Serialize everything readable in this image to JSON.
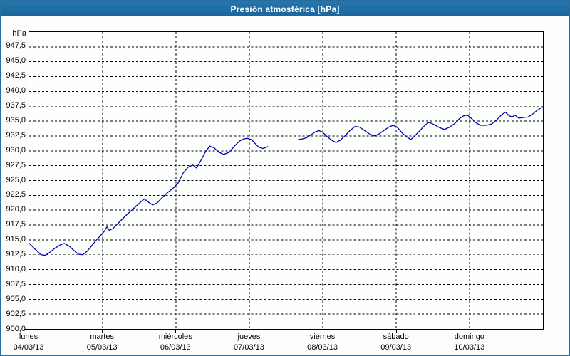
{
  "window": {
    "title": "Presión atmosférica [hPa]",
    "title_bar_color": "#2070a6",
    "border_color": "#2d6d9e"
  },
  "chart_data": {
    "type": "line",
    "title": "Presión atmosférica [hPa]",
    "ylabel": "hPa",
    "grid": "dashed",
    "legend": "none",
    "y_axis": {
      "min": 900,
      "max": 950,
      "tick_step": 2.5,
      "ticks": [
        {
          "label": "947,5",
          "value": 947.5
        },
        {
          "label": "945,0",
          "value": 945.0
        },
        {
          "label": "942,5",
          "value": 942.5
        },
        {
          "label": "940,0",
          "value": 940.0
        },
        {
          "label": "937,5",
          "value": 937.5
        },
        {
          "label": "935,0",
          "value": 935.0
        },
        {
          "label": "932,5",
          "value": 932.5
        },
        {
          "label": "930,0",
          "value": 930.0
        },
        {
          "label": "927,5",
          "value": 927.5
        },
        {
          "label": "925,0",
          "value": 925.0
        },
        {
          "label": "922,5",
          "value": 922.5
        },
        {
          "label": "920,0",
          "value": 920.0
        },
        {
          "label": "917,5",
          "value": 917.5
        },
        {
          "label": "915,0",
          "value": 915.0
        },
        {
          "label": "912,5",
          "value": 912.5
        },
        {
          "label": "910,0",
          "value": 910.0
        },
        {
          "label": "907,5",
          "value": 907.5
        },
        {
          "label": "905,0",
          "value": 905.0
        },
        {
          "label": "902,5",
          "value": 902.5
        },
        {
          "label": "900,0",
          "value": 900.0
        }
      ]
    },
    "x_axis": {
      "span_days": 7,
      "days": [
        {
          "name": "lunes",
          "date": "04/03/13"
        },
        {
          "name": "martes",
          "date": "05/03/13"
        },
        {
          "name": "miércoles",
          "date": "06/03/13"
        },
        {
          "name": "jueves",
          "date": "07/03/13"
        },
        {
          "name": "viernes",
          "date": "08/03/13"
        },
        {
          "name": "sábado",
          "date": "09/03/13"
        },
        {
          "name": "domingo",
          "date": "10/03/13"
        }
      ]
    },
    "series": [
      {
        "name": "Presión atmosférica",
        "color": "#0000a8",
        "unit": "hPa",
        "x_unit": "day_offset",
        "segments": [
          [
            [
              0.0,
              914.4
            ],
            [
              0.05,
              913.8
            ],
            [
              0.1,
              913.2
            ],
            [
              0.16,
              912.5
            ],
            [
              0.22,
              912.4
            ],
            [
              0.28,
              912.9
            ],
            [
              0.35,
              913.6
            ],
            [
              0.43,
              914.2
            ],
            [
              0.48,
              914.4
            ],
            [
              0.55,
              913.9
            ],
            [
              0.61,
              913.2
            ],
            [
              0.67,
              912.6
            ],
            [
              0.73,
              912.5
            ],
            [
              0.79,
              913.1
            ],
            [
              0.85,
              914.0
            ],
            [
              0.91,
              914.9
            ],
            [
              0.97,
              915.7
            ],
            [
              1.02,
              916.4
            ],
            [
              1.06,
              917.2
            ],
            [
              1.09,
              916.6
            ],
            [
              1.14,
              916.9
            ],
            [
              1.22,
              917.9
            ],
            [
              1.3,
              918.9
            ],
            [
              1.38,
              919.8
            ],
            [
              1.45,
              920.6
            ],
            [
              1.52,
              921.4
            ],
            [
              1.57,
              921.9
            ],
            [
              1.63,
              921.3
            ],
            [
              1.68,
              920.9
            ],
            [
              1.74,
              921.2
            ],
            [
              1.81,
              922.1
            ],
            [
              1.89,
              923.0
            ],
            [
              1.96,
              923.7
            ],
            [
              2.03,
              924.6
            ],
            [
              2.1,
              926.3
            ],
            [
              2.17,
              927.3
            ],
            [
              2.23,
              927.6
            ],
            [
              2.28,
              927.1
            ],
            [
              2.34,
              928.4
            ],
            [
              2.4,
              929.8
            ],
            [
              2.46,
              930.8
            ],
            [
              2.52,
              930.5
            ],
            [
              2.58,
              929.8
            ],
            [
              2.65,
              929.4
            ],
            [
              2.72,
              929.7
            ],
            [
              2.79,
              930.7
            ],
            [
              2.86,
              931.6
            ],
            [
              2.92,
              932.0
            ],
            [
              2.97,
              932.1
            ],
            [
              3.03,
              931.9
            ],
            [
              3.08,
              931.2
            ],
            [
              3.13,
              930.6
            ],
            [
              3.19,
              930.4
            ],
            [
              3.25,
              930.7
            ]
          ],
          [
            [
              3.67,
              931.9
            ],
            [
              3.72,
              932.0
            ],
            [
              3.78,
              932.2
            ],
            [
              3.84,
              932.7
            ],
            [
              3.9,
              933.2
            ],
            [
              3.95,
              933.4
            ],
            [
              4.0,
              933.1
            ],
            [
              4.06,
              932.4
            ],
            [
              4.12,
              931.8
            ],
            [
              4.18,
              931.4
            ],
            [
              4.24,
              931.8
            ],
            [
              4.3,
              932.5
            ],
            [
              4.37,
              933.4
            ],
            [
              4.44,
              934.1
            ],
            [
              4.5,
              934.0
            ],
            [
              4.56,
              933.5
            ],
            [
              4.63,
              932.9
            ],
            [
              4.7,
              932.5
            ],
            [
              4.76,
              932.8
            ],
            [
              4.83,
              933.4
            ],
            [
              4.9,
              934.0
            ],
            [
              4.96,
              934.3
            ],
            [
              5.02,
              933.9
            ],
            [
              5.09,
              932.9
            ],
            [
              5.15,
              932.3
            ],
            [
              5.2,
              931.9
            ],
            [
              5.26,
              932.6
            ],
            [
              5.33,
              933.5
            ],
            [
              5.4,
              934.4
            ],
            [
              5.45,
              934.8
            ],
            [
              5.52,
              934.4
            ],
            [
              5.59,
              933.9
            ],
            [
              5.66,
              933.6
            ],
            [
              5.73,
              934.0
            ],
            [
              5.8,
              934.6
            ],
            [
              5.86,
              935.4
            ],
            [
              5.92,
              935.9
            ],
            [
              5.97,
              936.0
            ],
            [
              6.03,
              935.4
            ],
            [
              6.09,
              934.7
            ],
            [
              6.15,
              934.3
            ],
            [
              6.23,
              934.3
            ],
            [
              6.3,
              934.5
            ],
            [
              6.37,
              935.2
            ],
            [
              6.44,
              936.1
            ],
            [
              6.49,
              936.5
            ],
            [
              6.54,
              935.9
            ],
            [
              6.58,
              935.7
            ],
            [
              6.62,
              936.0
            ],
            [
              6.67,
              935.5
            ],
            [
              6.73,
              935.6
            ],
            [
              6.8,
              935.7
            ],
            [
              6.86,
              936.2
            ],
            [
              6.92,
              936.8
            ],
            [
              6.97,
              937.2
            ],
            [
              7.0,
              937.3
            ]
          ]
        ]
      }
    ]
  }
}
